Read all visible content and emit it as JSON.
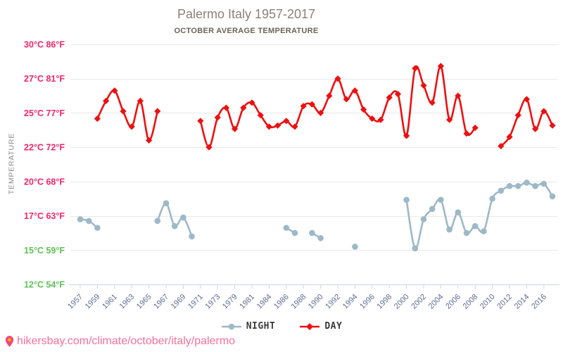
{
  "header": {
    "title": "Palermo Italy 1957-2017",
    "subtitle": "OCTOBER AVERAGE TEMPERATURE"
  },
  "chart_data": {
    "type": "line",
    "title": "Palermo Italy 1957-2017",
    "subtitle": "OCTOBER AVERAGE TEMPERATURE",
    "ylabel": "TEMPERATURE",
    "xlabel": "",
    "grid": "horizontal",
    "legend_position": "bottom",
    "y_ticks": [
      {
        "label": "30°C 86°F",
        "value": 30,
        "color": "#f3256b"
      },
      {
        "label": "27°C 81°F",
        "value": 27,
        "color": "#f3256b"
      },
      {
        "label": "25°C 77°F",
        "value": 25,
        "color": "#f3256b"
      },
      {
        "label": "22°C 72°F",
        "value": 22,
        "color": "#f3256b"
      },
      {
        "label": "20°C 68°F",
        "value": 20,
        "color": "#f3256b"
      },
      {
        "label": "17°C 63°F",
        "value": 17,
        "color": "#f3256b"
      },
      {
        "label": "15°C 59°F",
        "value": 15,
        "color": "#5ec254"
      },
      {
        "label": "12°C 54°F",
        "value": 12,
        "color": "#5ec254"
      }
    ],
    "x_labeled_years": [
      1957,
      1959,
      1961,
      1963,
      1965,
      1967,
      1969,
      1971,
      1973,
      1979,
      1981,
      1984,
      1986,
      1988,
      1990,
      1992,
      1994,
      1996,
      1998,
      2000,
      2002,
      2004,
      2006,
      2008,
      2010,
      2012,
      2014,
      2016
    ],
    "categories": [
      1957,
      1958,
      1959,
      1960,
      1961,
      1962,
      1963,
      1964,
      1965,
      1966,
      1967,
      1968,
      1969,
      1970,
      1971,
      1972,
      1973,
      1978,
      1979,
      1980,
      1981,
      1983,
      1984,
      1985,
      1986,
      1987,
      1988,
      1989,
      1990,
      1991,
      1992,
      1993,
      1994,
      1995,
      1996,
      1997,
      1998,
      1999,
      2000,
      2001,
      2002,
      2003,
      2004,
      2005,
      2006,
      2007,
      2008,
      2009,
      2010,
      2011,
      2012,
      2013,
      2014,
      2015,
      2016,
      2017
    ],
    "series": [
      {
        "name": "NIGHT",
        "color": "#9db9c7",
        "marker": "circle",
        "values": [
          16.8,
          16.7,
          16.3,
          null,
          null,
          null,
          null,
          null,
          null,
          16.7,
          18.1,
          16.4,
          16.9,
          15.8,
          null,
          null,
          null,
          null,
          null,
          null,
          null,
          null,
          null,
          null,
          16.3,
          16.0,
          null,
          16.0,
          15.7,
          null,
          null,
          null,
          15.2,
          null,
          null,
          null,
          null,
          null,
          18.4,
          15.1,
          16.8,
          17.6,
          18.4,
          16.2,
          17.3,
          16.0,
          16.4,
          16.1,
          18.5,
          19.2,
          19.6,
          19.6,
          19.9,
          19.6,
          19.8,
          18.7
        ]
      },
      {
        "name": "DAY",
        "color": "#ee1010",
        "marker": "diamond",
        "values": [
          null,
          null,
          24.5,
          25.7,
          26.3,
          25.1,
          23.8,
          25.7,
          22.6,
          25.1,
          null,
          null,
          null,
          null,
          24.3,
          22.0,
          24.6,
          25.3,
          23.6,
          25.3,
          25.6,
          24.8,
          23.8,
          23.9,
          24.3,
          23.8,
          25.4,
          25.5,
          25.0,
          26.0,
          27.0,
          25.8,
          26.3,
          25.2,
          24.5,
          24.4,
          25.9,
          26.1,
          23.0,
          27.9,
          26.6,
          25.6,
          28.1,
          24.4,
          26.0,
          23.2,
          23.7,
          null,
          null,
          22.1,
          22.9,
          24.8,
          25.8,
          23.6,
          25.1,
          23.9
        ]
      }
    ],
    "axis_color": "#c9d5e8",
    "grid_color": "#e9e9e9",
    "x_label_color": "#5d6e91"
  },
  "footer": {
    "url": "hikersbay.com/climate/october/italy/palermo",
    "link_color": "#f8709c"
  }
}
